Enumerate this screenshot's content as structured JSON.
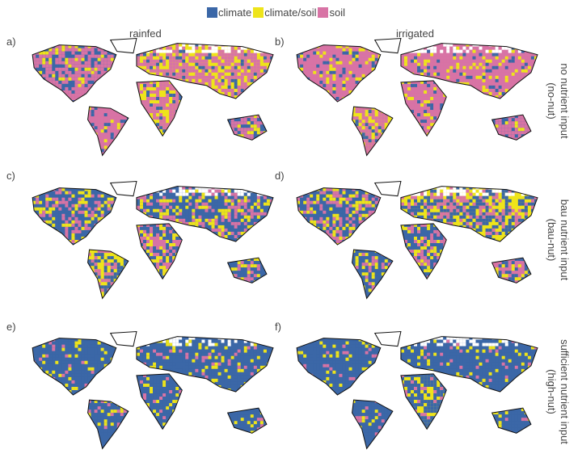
{
  "legend": [
    {
      "label": "climate",
      "color": "#3b67a7"
    },
    {
      "label": "climate/soil",
      "color": "#eee41a"
    },
    {
      "label": "soil",
      "color": "#d873a5"
    }
  ],
  "columns": [
    "rainfed",
    "irrigated"
  ],
  "rows": [
    {
      "line1": "no nutrient input",
      "line2": "(no-nut)"
    },
    {
      "line1": "bau  nutrient input",
      "line2": "(bau-nut)"
    },
    {
      "line1": "sufficient nutrient input",
      "line2": "(high-nut)"
    }
  ],
  "panels": [
    {
      "label": "a)",
      "dominant": "soil"
    },
    {
      "label": "b)",
      "dominant": "soil"
    },
    {
      "label": "c)",
      "dominant": "mixed"
    },
    {
      "label": "d)",
      "dominant": "mixed"
    },
    {
      "label": "e)",
      "dominant": "climate"
    },
    {
      "label": "f)",
      "dominant": "climate"
    }
  ]
}
